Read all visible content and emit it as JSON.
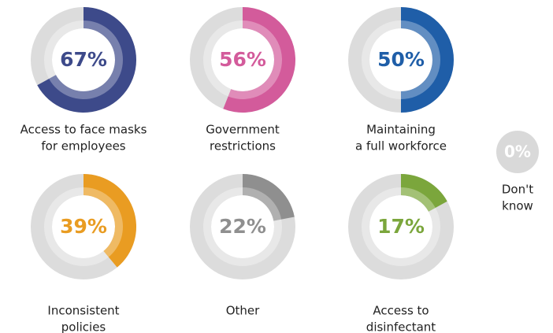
{
  "chart_data": {
    "type": "donut",
    "categories": [
      [
        "Access to face masks",
        "for employees"
      ],
      [
        "Government",
        "restrictions"
      ],
      [
        "Maintaining",
        "a full workforce"
      ],
      [
        "Inconsistent",
        "policies"
      ],
      [
        "Other"
      ],
      [
        "Access to",
        "disinfectant"
      ],
      [
        "Don't",
        "know"
      ]
    ],
    "values": [
      67,
      56,
      50,
      39,
      22,
      17,
      0
    ],
    "value_labels": [
      "67%",
      "56%",
      "50%",
      "39%",
      "22%",
      "17%",
      "0%"
    ],
    "colors": [
      "#3d4a8a",
      "#d35b9b",
      "#1f5ea8",
      "#e99c22",
      "#8f8f8f",
      "#7ba63c",
      "#d9d9d9"
    ],
    "ylim": [
      0,
      100
    ]
  }
}
